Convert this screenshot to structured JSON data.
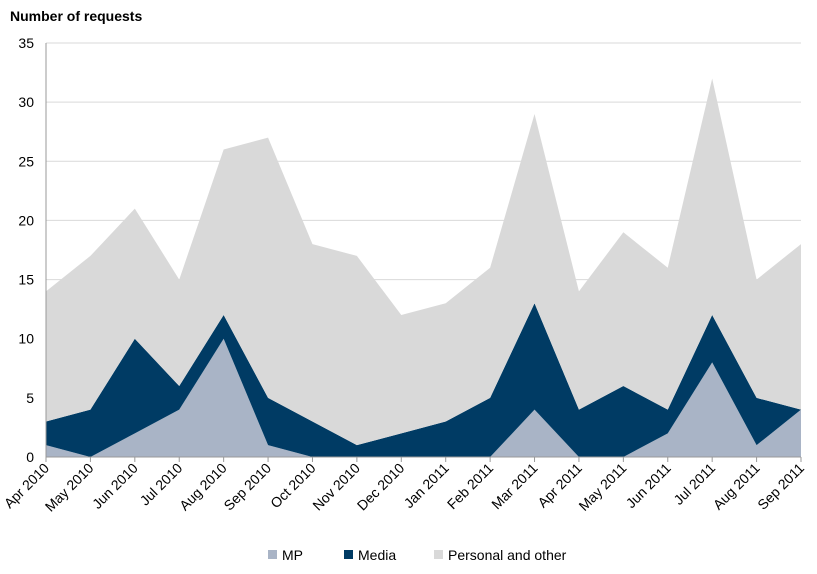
{
  "chart_data": {
    "type": "area",
    "stacked": true,
    "title": "",
    "ylabel": "Number of requests",
    "xlabel": "",
    "ylim": [
      0,
      35
    ],
    "yticks": [
      0,
      5,
      10,
      15,
      20,
      25,
      30,
      35
    ],
    "grid": true,
    "legend_position": "bottom",
    "categories": [
      "Apr 2010",
      "May 2010",
      "Jun 2010",
      "Jul 2010",
      "Aug 2010",
      "Sep 2010",
      "Oct 2010",
      "Nov 2010",
      "Dec 2010",
      "Jan 2011",
      "Feb 2011",
      "Mar 2011",
      "Apr 2011",
      "May 2011",
      "Jun 2011",
      "Jul 2011",
      "Aug 2011",
      "Sep 2011"
    ],
    "series": [
      {
        "name": "MP",
        "color": "#a9b4c6",
        "values": [
          1,
          0,
          2,
          4,
          10,
          1,
          0,
          0,
          0,
          0,
          0,
          4,
          0,
          0,
          2,
          8,
          1,
          4
        ]
      },
      {
        "name": "Media",
        "color": "#003b64",
        "values": [
          2,
          4,
          8,
          2,
          2,
          4,
          3,
          1,
          2,
          3,
          5,
          9,
          4,
          6,
          2,
          4,
          4,
          0
        ]
      },
      {
        "name": "Personal and other",
        "color": "#d9d9d9",
        "values": [
          11,
          13,
          11,
          9,
          14,
          22,
          15,
          16,
          10,
          10,
          11,
          16,
          10,
          13,
          12,
          20,
          10,
          14
        ]
      }
    ]
  }
}
